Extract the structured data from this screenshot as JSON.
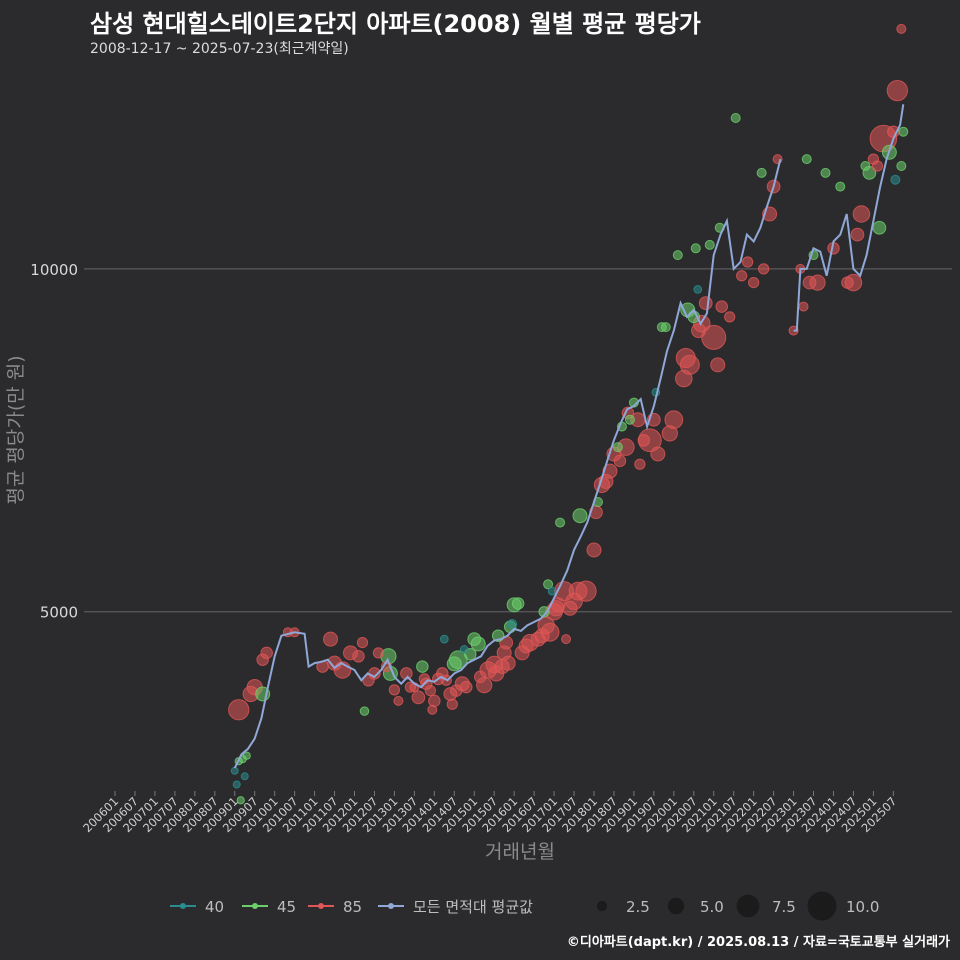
{
  "title": "삼성 현대힐스테이트2단지 아파트(2008) 월별 평균 평당가",
  "subtitle": "2008-12-17 ~ 2025-07-23(최근계약일)",
  "footer": "©디아파트(dapt.kr) / 2025.08.13 / 자료=국토교통부 실거래가",
  "colors": {
    "bg": "#2b2b2d",
    "grid": "#5a5a5c",
    "s40": "#2a8d8d",
    "s45": "#6ccf6c",
    "s85": "#e05656",
    "avg": "#8fa8d8"
  },
  "chart_data": {
    "type": "scatter",
    "xlabel": "거래년월",
    "ylabel": "평균 평당가(만 원)",
    "ylim": [
      2400,
      12900
    ],
    "yticks": [
      5000,
      10000
    ],
    "xticks": [
      "200601",
      "200607",
      "200701",
      "200707",
      "200801",
      "200807",
      "200901",
      "200907",
      "201001",
      "201007",
      "201101",
      "201107",
      "201201",
      "201207",
      "201301",
      "201307",
      "201401",
      "201407",
      "201501",
      "201507",
      "201601",
      "201607",
      "201701",
      "201707",
      "201801",
      "201807",
      "201901",
      "201907",
      "202001",
      "202007",
      "202101",
      "202107",
      "202201",
      "202207",
      "202301",
      "202307",
      "202401",
      "202407",
      "202501",
      "202507"
    ],
    "legend": {
      "series": [
        {
          "name": "40",
          "color": "#2a8d8d"
        },
        {
          "name": "45",
          "color": "#6ccf6c"
        },
        {
          "name": "85",
          "color": "#e05656"
        },
        {
          "name": "모든 면적대 평균값",
          "color": "#8fa8d8"
        }
      ],
      "sizes": [
        {
          "label": "2.5",
          "value": 2.5
        },
        {
          "label": "5.0",
          "value": 5.0
        },
        {
          "label": "7.5",
          "value": 7.5
        },
        {
          "label": "10.0",
          "value": 10.0
        }
      ]
    },
    "average_line": [
      [
        [
          2009.0,
          2720
        ],
        [
          2009.17,
          2920
        ],
        [
          2009.33,
          3000
        ],
        [
          2009.5,
          3150
        ],
        [
          2009.67,
          3450
        ],
        [
          2009.83,
          3900
        ],
        [
          2010.0,
          4350
        ],
        [
          2010.17,
          4650
        ],
        [
          2010.5,
          4700
        ],
        [
          2010.75,
          4680
        ],
        [
          2010.85,
          4200
        ],
        [
          2011.0,
          4250
        ],
        [
          2011.17,
          4270
        ],
        [
          2011.33,
          4300
        ],
        [
          2011.5,
          4180
        ],
        [
          2011.67,
          4250
        ],
        [
          2011.83,
          4200
        ],
        [
          2012.0,
          4150
        ],
        [
          2012.17,
          4000
        ],
        [
          2012.33,
          4100
        ],
        [
          2012.5,
          4050
        ],
        [
          2012.67,
          4150
        ],
        [
          2012.83,
          4300
        ],
        [
          2013.0,
          4050
        ],
        [
          2013.17,
          3950
        ],
        [
          2013.33,
          4050
        ],
        [
          2013.5,
          3950
        ],
        [
          2013.67,
          3900
        ],
        [
          2013.83,
          4000
        ],
        [
          2014.0,
          3980
        ],
        [
          2014.17,
          4050
        ],
        [
          2014.33,
          4000
        ],
        [
          2014.5,
          4100
        ],
        [
          2014.67,
          4150
        ],
        [
          2014.83,
          4250
        ],
        [
          2015.0,
          4300
        ],
        [
          2015.17,
          4350
        ],
        [
          2015.33,
          4500
        ],
        [
          2015.5,
          4580
        ],
        [
          2015.67,
          4600
        ],
        [
          2015.83,
          4650
        ],
        [
          2016.0,
          4750
        ],
        [
          2016.17,
          4720
        ],
        [
          2016.33,
          4800
        ],
        [
          2016.5,
          4850
        ],
        [
          2016.67,
          4900
        ],
        [
          2016.83,
          5000
        ],
        [
          2017.0,
          5200
        ],
        [
          2017.17,
          5400
        ],
        [
          2017.33,
          5600
        ],
        [
          2017.5,
          5900
        ],
        [
          2017.67,
          6100
        ],
        [
          2017.83,
          6300
        ],
        [
          2018.0,
          6600
        ],
        [
          2018.17,
          6900
        ],
        [
          2018.33,
          7200
        ],
        [
          2018.5,
          7500
        ],
        [
          2018.67,
          7750
        ],
        [
          2018.83,
          7950
        ],
        [
          2019.0,
          8000
        ],
        [
          2019.17,
          8100
        ],
        [
          2019.33,
          7700
        ],
        [
          2019.5,
          8000
        ],
        [
          2019.67,
          8400
        ],
        [
          2019.83,
          8800
        ],
        [
          2020.0,
          9100
        ],
        [
          2020.17,
          9500
        ],
        [
          2020.33,
          9300
        ],
        [
          2020.5,
          9400
        ],
        [
          2020.67,
          9200
        ],
        [
          2020.83,
          9350
        ],
        [
          2021.0,
          10200
        ],
        [
          2021.17,
          10500
        ],
        [
          2021.33,
          10700
        ],
        [
          2021.5,
          10000
        ],
        [
          2021.67,
          10100
        ],
        [
          2021.83,
          10500
        ],
        [
          2022.0,
          10400
        ],
        [
          2022.17,
          10600
        ],
        [
          2022.33,
          10900
        ],
        [
          2022.5,
          11200
        ],
        [
          2022.67,
          11600
        ]
      ],
      [
        [
          2023.0,
          9100
        ],
        [
          2023.08,
          9100
        ],
        [
          2023.17,
          10000
        ],
        [
          2023.33,
          10000
        ],
        [
          2023.5,
          10300
        ],
        [
          2023.67,
          10250
        ],
        [
          2023.83,
          9900
        ],
        [
          2024.0,
          10400
        ],
        [
          2024.17,
          10500
        ],
        [
          2024.33,
          10800
        ],
        [
          2024.5,
          10000
        ],
        [
          2024.67,
          9900
        ],
        [
          2024.83,
          10200
        ],
        [
          2025.0,
          10700
        ],
        [
          2025.17,
          11200
        ],
        [
          2025.33,
          11600
        ],
        [
          2025.5,
          11900
        ],
        [
          2025.67,
          12100
        ],
        [
          2025.75,
          12400
        ]
      ]
    ],
    "points": [
      [
        2009.0,
        2680,
        "40",
        1.2
      ],
      [
        2009.05,
        2480,
        "40",
        1.2
      ],
      [
        2009.25,
        2600,
        "40",
        1.2
      ],
      [
        2009.1,
        2820,
        "45",
        1.3
      ],
      [
        2009.2,
        2850,
        "45",
        1.3
      ],
      [
        2009.3,
        2900,
        "45",
        1.3
      ],
      [
        2009.15,
        2250,
        "45",
        1.3
      ],
      [
        2009.1,
        3570,
        "85",
        6.5
      ],
      [
        2009.4,
        3800,
        "85",
        4.5
      ],
      [
        2009.5,
        3900,
        "85",
        4.5
      ],
      [
        2009.7,
        3800,
        "45",
        4
      ],
      [
        2009.7,
        4300,
        "85",
        3
      ],
      [
        2009.8,
        4400,
        "85",
        3
      ],
      [
        2010.33,
        4700,
        "85",
        2
      ],
      [
        2010.5,
        4700,
        "85",
        2
      ],
      [
        2011.2,
        4200,
        "85",
        3
      ],
      [
        2011.4,
        4600,
        "85",
        4
      ],
      [
        2011.5,
        4250,
        "85",
        4
      ],
      [
        2011.7,
        4150,
        "85",
        5
      ],
      [
        2011.9,
        4400,
        "85",
        4
      ],
      [
        2012.1,
        4350,
        "85",
        3
      ],
      [
        2012.2,
        4550,
        "85",
        2.5
      ],
      [
        2012.25,
        3550,
        "45",
        1.8
      ],
      [
        2012.35,
        4000,
        "85",
        3
      ],
      [
        2012.5,
        4100,
        "85",
        3
      ],
      [
        2012.6,
        4400,
        "85",
        2.5
      ],
      [
        2012.8,
        4200,
        "85",
        2.5
      ],
      [
        2012.85,
        4350,
        "45",
        4.5
      ],
      [
        2012.9,
        4100,
        "45",
        4
      ],
      [
        2013.0,
        3860,
        "85",
        2.5
      ],
      [
        2013.1,
        3700,
        "85",
        2
      ],
      [
        2013.3,
        4100,
        "85",
        3
      ],
      [
        2013.4,
        3900,
        "85",
        2.5
      ],
      [
        2013.5,
        3900,
        "85",
        2
      ],
      [
        2013.6,
        3750,
        "85",
        3.5
      ],
      [
        2013.7,
        4200,
        "45",
        3
      ],
      [
        2013.8,
        3950,
        "85",
        3
      ],
      [
        2013.9,
        3850,
        "85",
        2.5
      ],
      [
        2013.95,
        3570,
        "85",
        2
      ],
      [
        2013.75,
        4020,
        "85",
        2.5
      ],
      [
        2014.0,
        3700,
        "85",
        3
      ],
      [
        2014.1,
        4020,
        "85",
        3
      ],
      [
        2014.2,
        4100,
        "85",
        3
      ],
      [
        2014.25,
        4600,
        "40",
        1.5
      ],
      [
        2014.3,
        4000,
        "85",
        2.5
      ],
      [
        2014.4,
        3800,
        "85",
        3.5
      ],
      [
        2014.45,
        3650,
        "85",
        2.5
      ],
      [
        2014.5,
        4240,
        "45",
        4
      ],
      [
        2014.55,
        3850,
        "85",
        3
      ],
      [
        2014.6,
        4300,
        "45",
        5.5
      ],
      [
        2014.7,
        3950,
        "85",
        4
      ],
      [
        2014.75,
        4450,
        "40",
        1.5
      ],
      [
        2014.8,
        3900,
        "85",
        3
      ],
      [
        2014.9,
        4380,
        "45",
        3
      ],
      [
        2015.0,
        4600,
        "45",
        3.5
      ],
      [
        2015.1,
        4530,
        "45",
        4
      ],
      [
        2015.15,
        4050,
        "85",
        3
      ],
      [
        2015.25,
        3930,
        "85",
        4.5
      ],
      [
        2015.35,
        4150,
        "85",
        5
      ],
      [
        2015.5,
        4230,
        "85",
        5
      ],
      [
        2015.55,
        4100,
        "85",
        4.5
      ],
      [
        2015.6,
        4650,
        "45",
        3
      ],
      [
        2015.7,
        4200,
        "85",
        4
      ],
      [
        2015.75,
        4400,
        "85",
        4
      ],
      [
        2015.8,
        4550,
        "85",
        3.5
      ],
      [
        2015.85,
        4250,
        "85",
        4
      ],
      [
        2015.9,
        4780,
        "45",
        3
      ],
      [
        2015.95,
        4820,
        "40",
        2
      ],
      [
        2016.0,
        5100,
        "45",
        4
      ],
      [
        2016.1,
        5120,
        "45",
        3
      ],
      [
        2016.2,
        4400,
        "85",
        4
      ],
      [
        2016.3,
        4500,
        "85",
        4
      ],
      [
        2016.4,
        4550,
        "85",
        5
      ],
      [
        2016.6,
        4600,
        "85",
        4
      ],
      [
        2016.7,
        4650,
        "85",
        4
      ],
      [
        2016.75,
        5000,
        "45",
        2.5
      ],
      [
        2016.8,
        4800,
        "85",
        5
      ],
      [
        2016.85,
        5400,
        "45",
        2
      ],
      [
        2016.9,
        4700,
        "85",
        5.5
      ],
      [
        2016.95,
        5300,
        "40",
        1.5
      ],
      [
        2017.0,
        5000,
        "85",
        5
      ],
      [
        2017.05,
        5050,
        "85",
        4.5
      ],
      [
        2017.1,
        5100,
        "85",
        4
      ],
      [
        2017.15,
        6300,
        "45",
        2
      ],
      [
        2017.25,
        5300,
        "85",
        6
      ],
      [
        2017.3,
        4600,
        "85",
        2
      ],
      [
        2017.4,
        5050,
        "85",
        4
      ],
      [
        2017.5,
        5150,
        "85",
        5
      ],
      [
        2017.6,
        5300,
        "85",
        5.5
      ],
      [
        2017.65,
        6400,
        "45",
        4
      ],
      [
        2017.8,
        5300,
        "85",
        6.5
      ],
      [
        2018.0,
        5900,
        "85",
        4
      ],
      [
        2018.05,
        6450,
        "85",
        3.5
      ],
      [
        2018.1,
        6600,
        "45",
        2
      ],
      [
        2018.2,
        6850,
        "85",
        4.5
      ],
      [
        2018.3,
        6900,
        "85",
        4
      ],
      [
        2018.4,
        7050,
        "85",
        4
      ],
      [
        2018.5,
        7300,
        "85",
        4
      ],
      [
        2018.6,
        7400,
        "45",
        2
      ],
      [
        2018.65,
        7200,
        "85",
        3
      ],
      [
        2018.7,
        7700,
        "45",
        2
      ],
      [
        2018.8,
        7400,
        "85",
        5
      ],
      [
        2018.85,
        7900,
        "85",
        3
      ],
      [
        2018.9,
        7800,
        "45",
        2
      ],
      [
        2019.0,
        8050,
        "45",
        2
      ],
      [
        2019.1,
        7800,
        "85",
        4
      ],
      [
        2019.15,
        7150,
        "85",
        2.5
      ],
      [
        2019.25,
        7500,
        "85",
        3
      ],
      [
        2019.4,
        7500,
        "85",
        7.5
      ],
      [
        2019.5,
        7800,
        "85",
        3.5
      ],
      [
        2019.55,
        8200,
        "40",
        1.5
      ],
      [
        2019.6,
        7300,
        "85",
        4
      ],
      [
        2019.7,
        9150,
        "45",
        2
      ],
      [
        2019.8,
        9150,
        "45",
        2
      ],
      [
        2019.9,
        7600,
        "85",
        4.5
      ],
      [
        2020.0,
        7800,
        "85",
        5.5
      ],
      [
        2020.1,
        10200,
        "45",
        2
      ],
      [
        2020.25,
        8400,
        "85",
        5
      ],
      [
        2020.3,
        8700,
        "85",
        6
      ],
      [
        2020.35,
        9400,
        "45",
        4
      ],
      [
        2020.4,
        8600,
        "85",
        6
      ],
      [
        2020.5,
        9300,
        "45",
        3
      ],
      [
        2020.55,
        10300,
        "45",
        2
      ],
      [
        2020.6,
        9700,
        "40",
        1.5
      ],
      [
        2020.62,
        9100,
        "85",
        4
      ],
      [
        2020.7,
        9200,
        "85",
        5
      ],
      [
        2020.8,
        9500,
        "85",
        3.5
      ],
      [
        2020.9,
        10350,
        "45",
        2
      ],
      [
        2021.0,
        9000,
        "85",
        8
      ],
      [
        2021.1,
        8600,
        "85",
        4
      ],
      [
        2021.15,
        10600,
        "45",
        2
      ],
      [
        2021.2,
        9450,
        "85",
        3
      ],
      [
        2021.4,
        9300,
        "85",
        2.5
      ],
      [
        2021.55,
        12200,
        "45",
        2
      ],
      [
        2021.7,
        9900,
        "85",
        2.5
      ],
      [
        2021.85,
        10100,
        "85",
        2.5
      ],
      [
        2022.0,
        9800,
        "85",
        2.5
      ],
      [
        2022.2,
        11400,
        "45",
        2
      ],
      [
        2022.25,
        10000,
        "85",
        2.5
      ],
      [
        2022.4,
        10800,
        "85",
        4
      ],
      [
        2022.5,
        11200,
        "85",
        3.5
      ],
      [
        2022.6,
        11600,
        "85",
        2
      ],
      [
        2023.0,
        9100,
        "85",
        2
      ],
      [
        2023.17,
        10000,
        "85",
        2
      ],
      [
        2023.25,
        9450,
        "85",
        2
      ],
      [
        2023.33,
        11600,
        "45",
        2
      ],
      [
        2023.4,
        9800,
        "85",
        3.5
      ],
      [
        2023.5,
        10200,
        "45",
        2
      ],
      [
        2023.6,
        9800,
        "85",
        4.5
      ],
      [
        2023.8,
        11400,
        "45",
        2
      ],
      [
        2024.0,
        10300,
        "85",
        3
      ],
      [
        2024.17,
        11200,
        "45",
        2
      ],
      [
        2024.35,
        9800,
        "85",
        3
      ],
      [
        2024.5,
        9800,
        "85",
        5
      ],
      [
        2024.6,
        10500,
        "85",
        3.5
      ],
      [
        2024.7,
        10800,
        "85",
        5
      ],
      [
        2024.8,
        11500,
        "45",
        2
      ],
      [
        2024.9,
        11400,
        "45",
        3.5
      ],
      [
        2025.0,
        11600,
        "85",
        2.5
      ],
      [
        2025.1,
        11500,
        "85",
        2.5
      ],
      [
        2025.15,
        10600,
        "45",
        3.5
      ],
      [
        2025.25,
        11900,
        "85",
        9
      ],
      [
        2025.4,
        11700,
        "45",
        4
      ],
      [
        2025.5,
        12000,
        "85",
        3
      ],
      [
        2025.55,
        11300,
        "40",
        2
      ],
      [
        2025.6,
        12600,
        "85",
        6.5
      ],
      [
        2025.7,
        11500,
        "45",
        2
      ],
      [
        2025.75,
        12000,
        "45",
        2
      ],
      [
        2025.7,
        13500,
        "85",
        2
      ]
    ]
  }
}
